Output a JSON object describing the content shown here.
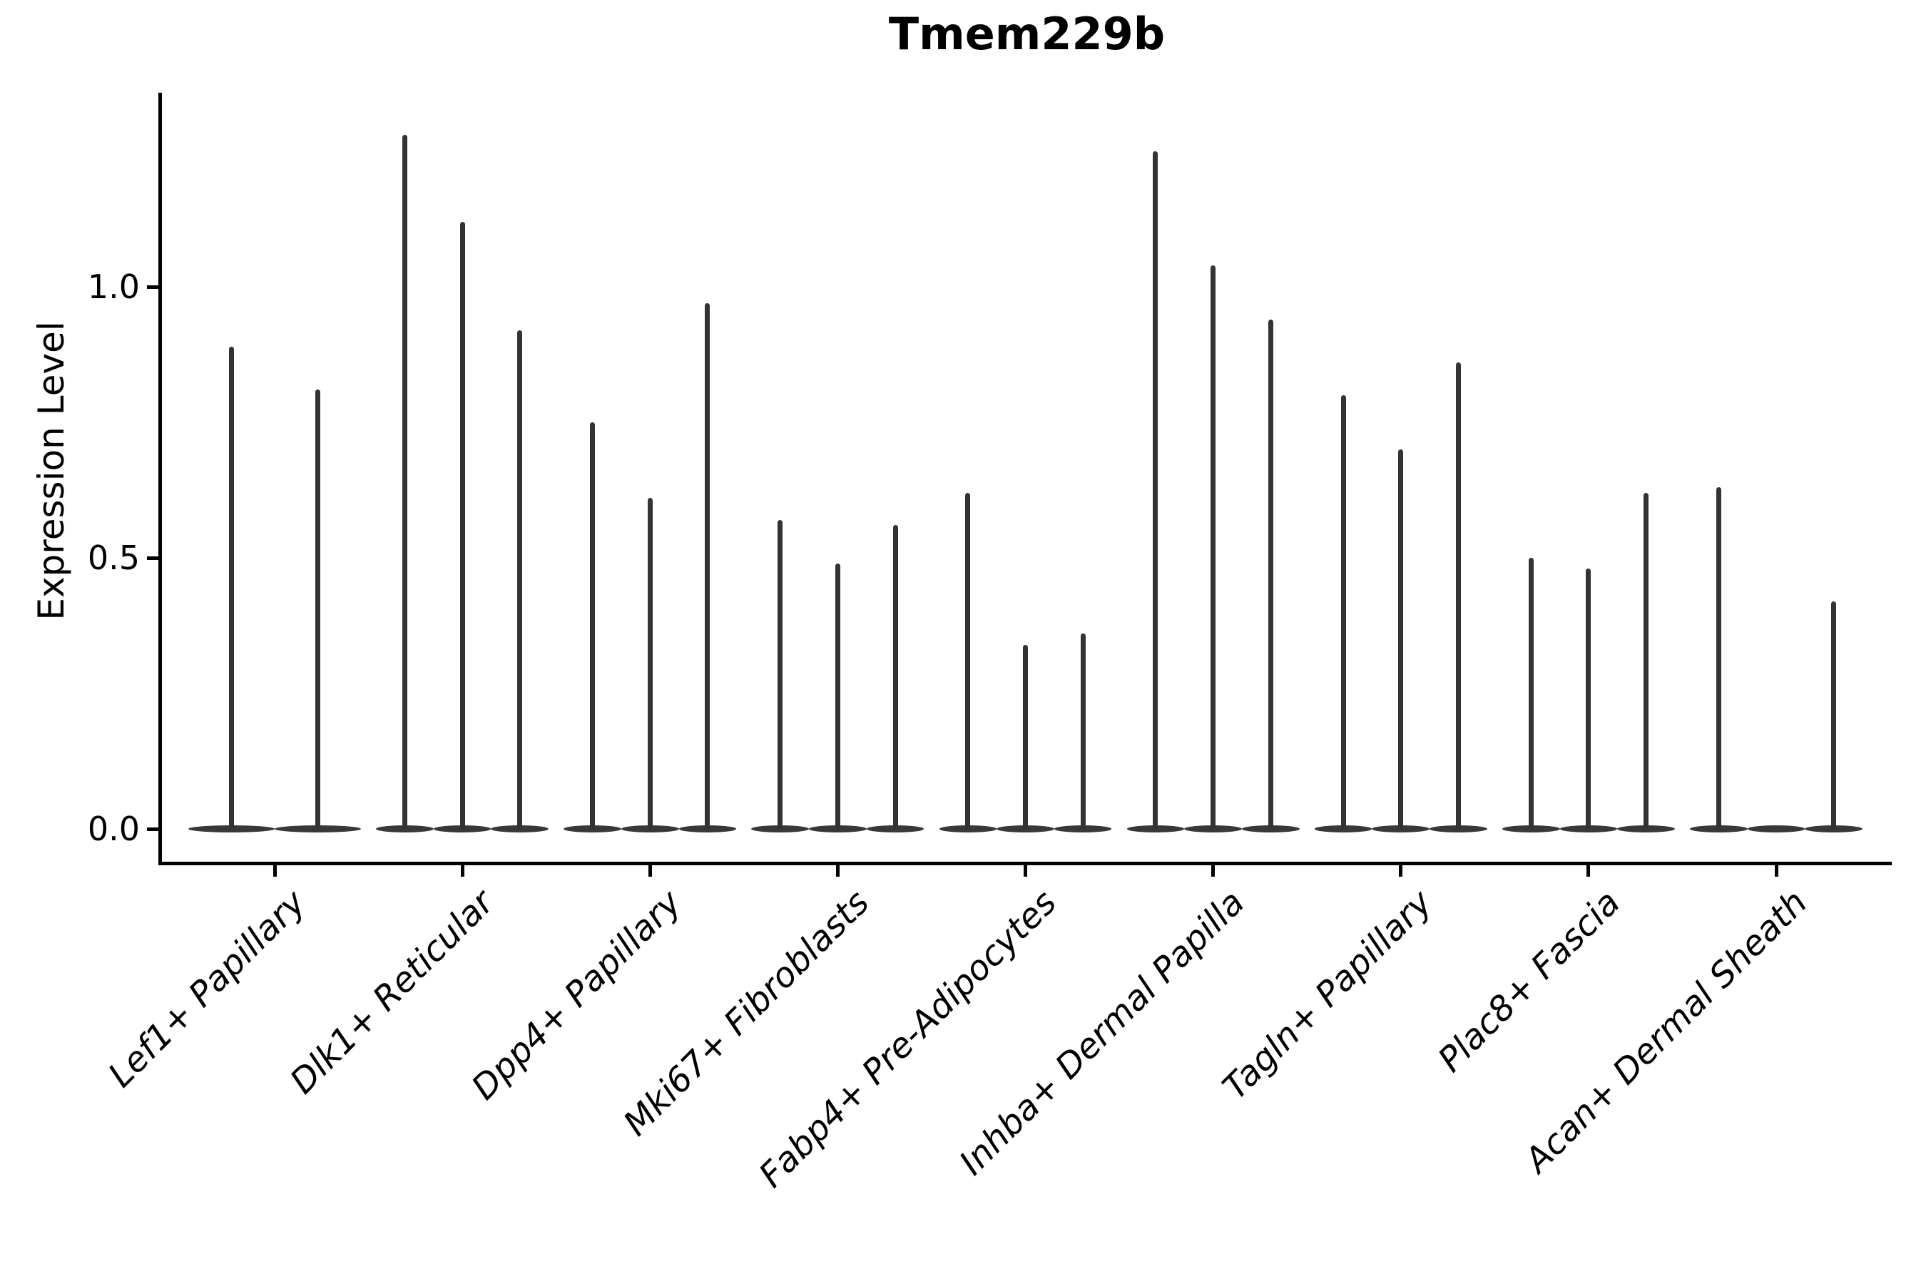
{
  "title": "Tmem229b",
  "y_axis": {
    "label": "Expression Level",
    "ticks": [
      "0.0",
      "0.5",
      "1.0"
    ],
    "tick_values": [
      0.0,
      0.5,
      1.0
    ]
  },
  "x_axis": {
    "label": ""
  },
  "colors": {
    "spike": "#333333",
    "violin_base": "#383838",
    "axis": "#000000",
    "text": "#000000",
    "background": "#ffffff"
  },
  "chart_data": {
    "type": "violin",
    "title": "Tmem229b",
    "xlabel": "",
    "ylabel": "Expression Level",
    "ylim": [
      -0.06,
      1.36
    ],
    "yticks": [
      0.0,
      0.5,
      1.0
    ],
    "grid": false,
    "legend": "none",
    "style_note": "Seurat-style VlnPlot: per category 2-3 extremely thin dark-gray violins, each a flat wide base at 0 plus a narrow vertical spike up to its max expression; peak value 0 means flat base with no spike",
    "categories": [
      "Lef1+ Papillary",
      "Dlk1+ Reticular",
      "Dpp4+ Papillary",
      "Mki67+ Fibroblasts",
      "Fabp4+ Pre-Adipocytes",
      "Inhba+ Dermal Papilla",
      "Tagln+ Papillary",
      "Plac8+ Fascia",
      "Acan+ Dermal Sheath"
    ],
    "groups": [
      {
        "category": "Lef1+ Papillary",
        "violin_peaks": [
          0.89,
          0.81
        ]
      },
      {
        "category": "Dlk1+ Reticular",
        "violin_peaks": [
          1.28,
          1.12,
          0.92
        ]
      },
      {
        "category": "Dpp4+ Papillary",
        "violin_peaks": [
          0.75,
          0.61,
          0.97
        ]
      },
      {
        "category": "Mki67+ Fibroblasts",
        "violin_peaks": [
          0.57,
          0.49,
          0.56
        ]
      },
      {
        "category": "Fabp4+ Pre-Adipocytes",
        "violin_peaks": [
          0.62,
          0.34,
          0.36
        ]
      },
      {
        "category": "Inhba+ Dermal Papilla",
        "violin_peaks": [
          1.25,
          1.04,
          0.94
        ]
      },
      {
        "category": "Tagln+ Papillary",
        "violin_peaks": [
          0.8,
          0.7,
          0.86
        ]
      },
      {
        "category": "Plac8+ Fascia",
        "violin_peaks": [
          0.5,
          0.48,
          0.62
        ]
      },
      {
        "category": "Acan+ Dermal Sheath",
        "violin_peaks": [
          0.63,
          0,
          0.42
        ]
      }
    ]
  }
}
